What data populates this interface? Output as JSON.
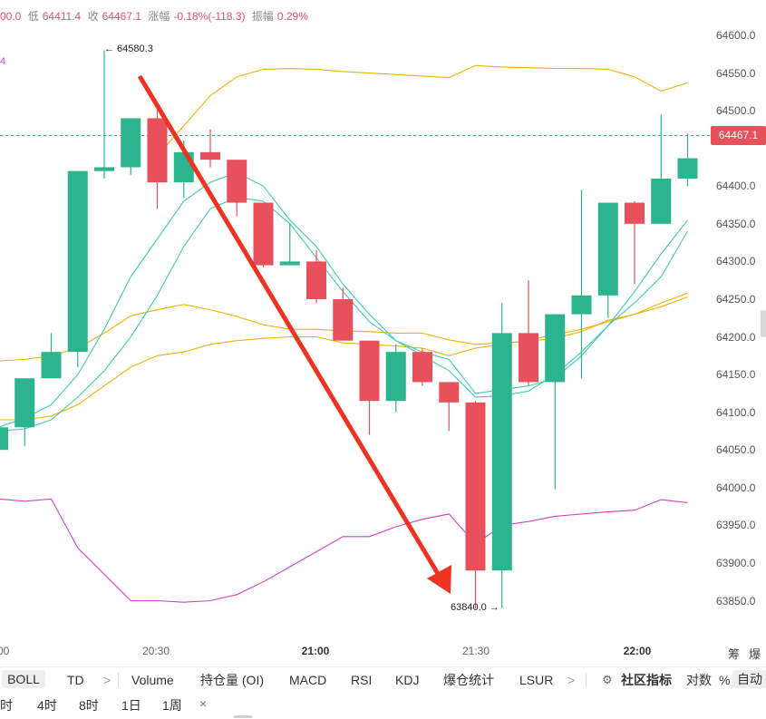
{
  "header": {
    "open_fragment": "00.0",
    "low_label": "低",
    "low_value": "64411.4",
    "close_label": "收",
    "close_value": "64467.1",
    "change_label": "涨幅",
    "change_value": "-0.18%(-118.3)",
    "amp_label": "振幅",
    "amp_value": "0.29%"
  },
  "indicator_fragment": "4",
  "price_badge": "64467.1",
  "annotations": {
    "high": "← 64580.3",
    "low": "63840.0 →"
  },
  "bottom_right": [
    "筹",
    "爆"
  ],
  "toolbar": {
    "items": [
      "BOLL",
      "TD",
      ">",
      "Volume",
      "持仓量 (OI)",
      "MACD",
      "RSI",
      "KDJ",
      "爆仓统计",
      "LSUR",
      ">",
      "社区指标",
      "对数",
      "%",
      "自动"
    ]
  },
  "timeframes": [
    "时",
    "4时",
    "8时",
    "1日",
    "1周",
    "×"
  ],
  "colors": {
    "up": "#2bb48e",
    "down": "#e8505b",
    "boll_mid": "#f3b000",
    "boll_upper": "#f3b000",
    "boll_lower": "#d43fc4",
    "ma_teal": "#3ecbb0",
    "arrow": "#ee3322"
  },
  "chart_data": {
    "type": "candlestick",
    "y_ticks": [
      64600,
      64550,
      64500,
      64450,
      64400,
      64350,
      64300,
      64250,
      64200,
      64150,
      64100,
      64050,
      64000,
      63950,
      63900,
      63850
    ],
    "y_tick_labels": [
      "64600.0",
      "64550.0",
      "64500.0",
      "64450.0",
      "64400.0",
      "64350.0",
      "64300.0",
      "64250.0",
      "64200.0",
      "64150.0",
      "64100.0",
      "64050.0",
      "64000.0",
      "63950.0",
      "63900.0",
      "63850.0"
    ],
    "ylim": [
      63820,
      64625
    ],
    "x_labels": [
      {
        "label": ":00",
        "bold": false
      },
      {
        "label": "20:30",
        "bold": false
      },
      {
        "label": "21:00",
        "bold": true
      },
      {
        "label": "21:30",
        "bold": false
      },
      {
        "label": "22:00",
        "bold": true
      }
    ],
    "current_price": 64467.1,
    "candles": [
      {
        "o": 64050,
        "h": 64110,
        "l": 64050,
        "c": 64080
      },
      {
        "o": 64080,
        "h": 64145,
        "l": 64055,
        "c": 64145
      },
      {
        "o": 64145,
        "h": 64205,
        "l": 64145,
        "c": 64180
      },
      {
        "o": 64180,
        "h": 64420,
        "l": 64160,
        "c": 64420
      },
      {
        "o": 64420,
        "h": 64580.3,
        "l": 64410,
        "c": 64425
      },
      {
        "o": 64425,
        "h": 64490,
        "l": 64415,
        "c": 64490
      },
      {
        "o": 64490,
        "h": 64505,
        "l": 64370,
        "c": 64405
      },
      {
        "o": 64405,
        "h": 64460,
        "l": 64385,
        "c": 64445
      },
      {
        "o": 64445,
        "h": 64475,
        "l": 64425,
        "c": 64435
      },
      {
        "o": 64435,
        "h": 64435,
        "l": 64360,
        "c": 64378
      },
      {
        "o": 64378,
        "h": 64378,
        "l": 64292,
        "c": 64295
      },
      {
        "o": 64295,
        "h": 64350,
        "l": 64295,
        "c": 64300
      },
      {
        "o": 64300,
        "h": 64315,
        "l": 64245,
        "c": 64250
      },
      {
        "o": 64250,
        "h": 64265,
        "l": 64195,
        "c": 64195
      },
      {
        "o": 64195,
        "h": 64195,
        "l": 64070,
        "c": 64115
      },
      {
        "o": 64115,
        "h": 64190,
        "l": 64100,
        "c": 64180
      },
      {
        "o": 64180,
        "h": 64185,
        "l": 64135,
        "c": 64140
      },
      {
        "o": 64140,
        "h": 64140,
        "l": 64075,
        "c": 64113
      },
      {
        "o": 64113,
        "h": 64115,
        "l": 63840,
        "c": 63890
      },
      {
        "o": 63890,
        "h": 64245,
        "l": 63840,
        "c": 64205
      },
      {
        "o": 64205,
        "h": 64275,
        "l": 64135,
        "c": 64140
      },
      {
        "o": 64140,
        "h": 64230,
        "l": 63998,
        "c": 64230
      },
      {
        "o": 64230,
        "h": 64395,
        "l": 64145,
        "c": 64255
      },
      {
        "o": 64255,
        "h": 64378,
        "l": 64225,
        "c": 64378
      },
      {
        "o": 64378,
        "h": 64380,
        "l": 64270,
        "c": 64350
      },
      {
        "o": 64350,
        "h": 64495,
        "l": 64350,
        "c": 64410
      },
      {
        "o": 64410,
        "h": 64470,
        "l": 64400,
        "c": 64437
      }
    ],
    "boll_upper": [
      null,
      null,
      null,
      null,
      null,
      null,
      64440,
      64480,
      64520,
      64545,
      64555,
      64556,
      64555,
      64552,
      64550,
      64548,
      64546,
      64544,
      64560,
      64558,
      64557,
      64556,
      64556,
      64555,
      64545,
      64526,
      64537
    ],
    "boll_mid": [
      64168,
      64170,
      64175,
      64185,
      64205,
      64228,
      64236,
      64243,
      64236,
      64227,
      64216,
      64210,
      64210,
      64208,
      64207,
      64205,
      64205,
      64196,
      64190,
      64192,
      64194,
      64198,
      64207,
      64222,
      64230,
      64240,
      64253
    ],
    "boll_lower": [
      63985,
      63982,
      63985,
      63920,
      63885,
      63850,
      63850,
      63848,
      63850,
      63858,
      63875,
      63895,
      63915,
      63935,
      63935,
      63948,
      63958,
      63965,
      63925,
      63950,
      63955,
      63962,
      63965,
      63968,
      63970,
      63984,
      63980
    ],
    "ma_slow": [
      64090,
      64090,
      64095,
      64110,
      64135,
      64160,
      64175,
      64180,
      64190,
      64195,
      64198,
      64200,
      64200,
      64192,
      64190,
      64188,
      64185,
      64175,
      64185,
      64190,
      64196,
      64203,
      64210,
      64220,
      64230,
      64245,
      64258
    ],
    "ma_teal1": [
      64080,
      64092,
      64110,
      64150,
      64210,
      64280,
      64330,
      64380,
      64405,
      64418,
      64400,
      64355,
      64320,
      64270,
      64230,
      64195,
      64175,
      64155,
      64120,
      64122,
      64128,
      64150,
      64180,
      64215,
      64260,
      64310,
      64355
    ],
    "ma_teal2": [
      64075,
      64078,
      64090,
      64120,
      64155,
      64200,
      64255,
      64320,
      64370,
      64385,
      64380,
      64350,
      64305,
      64260,
      64220,
      64195,
      64180,
      64170,
      64125,
      64130,
      64135,
      64145,
      64175,
      64215,
      64245,
      64280,
      64340
    ]
  }
}
